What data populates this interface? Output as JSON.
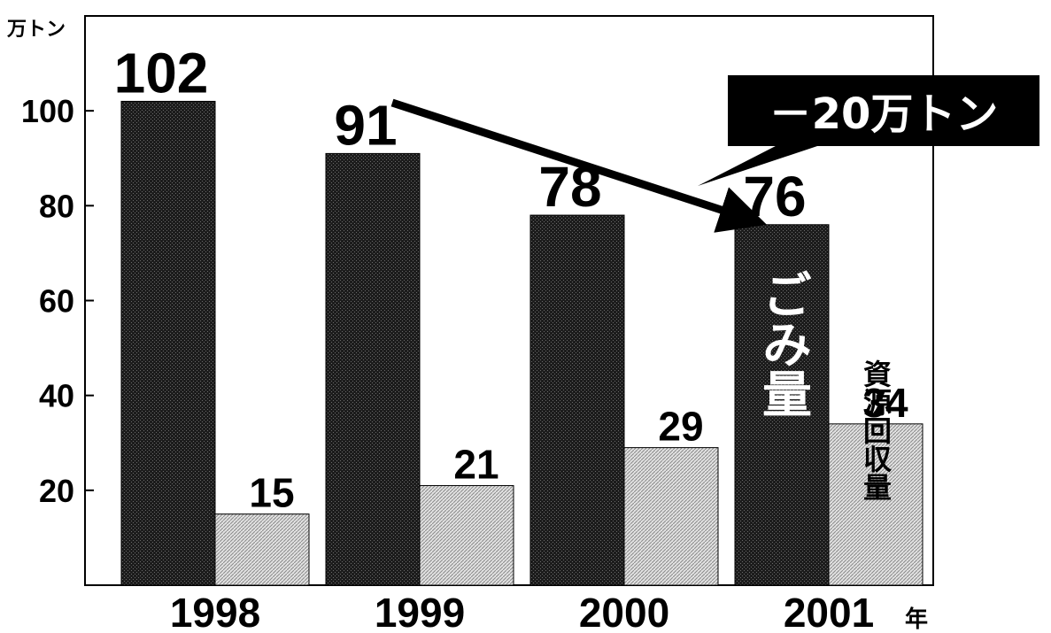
{
  "chart_data": {
    "type": "bar",
    "unit": "万トン",
    "year_suffix": "年",
    "categories": [
      "1998",
      "1999",
      "2000",
      "2001"
    ],
    "series": [
      {
        "name": "ごみ量",
        "values": [
          102,
          91,
          78,
          76
        ],
        "color": "#1a1a1a"
      },
      {
        "name": "資源回収量",
        "values": [
          15,
          21,
          29,
          34
        ],
        "color": "#cfcfcf"
      }
    ],
    "value_labels": {
      "garbage": [
        "102",
        "91",
        "78",
        "76"
      ],
      "recycle": [
        "15",
        "21",
        "29",
        "34"
      ]
    },
    "yticks": [
      20,
      40,
      60,
      80,
      100
    ],
    "ytick_labels": [
      "20",
      "40",
      "60",
      "80",
      "100"
    ],
    "ylim": [
      0,
      120
    ],
    "annotation": "－20万トン",
    "grid": false
  }
}
